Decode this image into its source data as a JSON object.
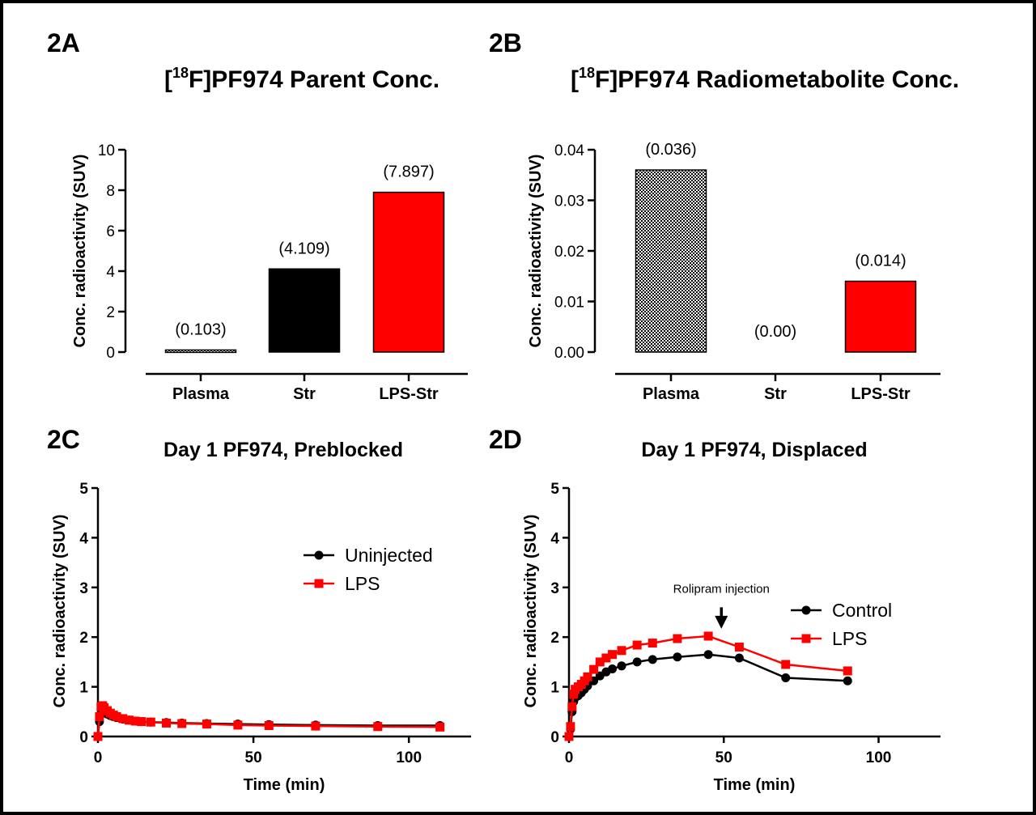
{
  "colors": {
    "black": "#000000",
    "red": "#ff0000",
    "white": "#ffffff"
  },
  "chart_data": [
    {
      "id": "2A",
      "type": "bar",
      "panel_label": "2A",
      "title_prefix": "[",
      "title_sup": "18",
      "title_rest": "F]PF974 Parent Conc.",
      "ylabel": "Conc. radioactivity (SUV)",
      "xlabel": "",
      "ylim": [
        0,
        10
      ],
      "yticks": [
        0,
        2,
        4,
        6,
        8,
        10
      ],
      "ytick_labels": [
        "0",
        "2",
        "4",
        "6",
        "8",
        "10"
      ],
      "categories": [
        "Plasma",
        "Str",
        "LPS-Str"
      ],
      "values": [
        0.103,
        4.109,
        7.897
      ],
      "value_labels": [
        "(0.103)",
        "(4.109)",
        "(7.897)"
      ],
      "fills": [
        "checker",
        "#000000",
        "#ff0000"
      ]
    },
    {
      "id": "2B",
      "type": "bar",
      "panel_label": "2B",
      "title_prefix": "[",
      "title_sup": "18",
      "title_rest": "F]PF974 Radiometabolite Conc.",
      "ylabel": "Conc. radioactivity (SUV)",
      "xlabel": "",
      "ylim": [
        0,
        0.04
      ],
      "yticks": [
        0,
        0.01,
        0.02,
        0.03,
        0.04
      ],
      "ytick_labels": [
        "0.00",
        "0.01",
        "0.02",
        "0.03",
        "0.04"
      ],
      "categories": [
        "Plasma",
        "Str",
        "LPS-Str"
      ],
      "values": [
        0.036,
        0.0,
        0.014
      ],
      "value_labels": [
        "(0.036)",
        "(0.00)",
        "(0.014)"
      ],
      "fills": [
        "checker",
        "#000000",
        "#ff0000"
      ]
    },
    {
      "id": "2C",
      "type": "line",
      "panel_label": "2C",
      "title": "Day 1 PF974, Preblocked",
      "xlabel": "Time (min)",
      "ylabel": "Conc. radioactivity (SUV)",
      "xlim": [
        0,
        120
      ],
      "ylim": [
        0,
        5
      ],
      "xticks": [
        0,
        50,
        100
      ],
      "xtick_labels": [
        "0",
        "50",
        "100"
      ],
      "yticks": [
        0,
        1,
        2,
        3,
        4,
        5
      ],
      "ytick_labels": [
        "0",
        "1",
        "2",
        "3",
        "4",
        "5"
      ],
      "legend_position": "upper-right",
      "annotation": null,
      "series": [
        {
          "name": "Uninjected",
          "color": "#000000",
          "marker": "circle",
          "x": [
            0,
            0.5,
            1,
            1.5,
            2,
            3,
            4,
            5,
            6,
            8,
            10,
            12,
            14,
            17,
            22,
            27,
            35,
            45,
            55,
            70,
            90,
            110
          ],
          "y": [
            0.0,
            0.3,
            0.45,
            0.5,
            0.48,
            0.45,
            0.42,
            0.4,
            0.38,
            0.35,
            0.33,
            0.31,
            0.3,
            0.29,
            0.28,
            0.27,
            0.26,
            0.25,
            0.24,
            0.23,
            0.22,
            0.22
          ]
        },
        {
          "name": "LPS",
          "color": "#ff0000",
          "marker": "square",
          "x": [
            0,
            0.5,
            1,
            1.5,
            2,
            3,
            4,
            5,
            6,
            8,
            10,
            12,
            14,
            17,
            22,
            27,
            35,
            45,
            55,
            70,
            90,
            110
          ],
          "y": [
            0.0,
            0.4,
            0.6,
            0.62,
            0.58,
            0.52,
            0.47,
            0.43,
            0.4,
            0.36,
            0.33,
            0.31,
            0.3,
            0.29,
            0.27,
            0.26,
            0.25,
            0.23,
            0.22,
            0.21,
            0.2,
            0.19
          ]
        }
      ]
    },
    {
      "id": "2D",
      "type": "line",
      "panel_label": "2D",
      "title": "Day 1 PF974, Displaced",
      "xlabel": "Time (min)",
      "ylabel": "Conc. radioactivity (SUV)",
      "xlim": [
        0,
        120
      ],
      "ylim": [
        0,
        5
      ],
      "xticks": [
        0,
        50,
        100
      ],
      "xtick_labels": [
        "0",
        "50",
        "100"
      ],
      "yticks": [
        0,
        1,
        2,
        3,
        4,
        5
      ],
      "ytick_labels": [
        "0",
        "1",
        "2",
        "3",
        "4",
        "5"
      ],
      "legend_position": "right",
      "annotation": {
        "text": "Rolipram injection",
        "x": 50,
        "arrow_from_y": 2.6,
        "arrow_to_y": 2.2
      },
      "series": [
        {
          "name": "Control",
          "color": "#000000",
          "marker": "circle",
          "x": [
            0,
            0.5,
            1,
            1.5,
            2,
            3,
            4,
            5,
            6,
            8,
            10,
            12,
            14,
            17,
            22,
            27,
            35,
            45,
            55,
            70,
            90
          ],
          "y": [
            0.0,
            0.15,
            0.5,
            0.7,
            0.78,
            0.82,
            0.88,
            0.95,
            1.02,
            1.12,
            1.22,
            1.3,
            1.36,
            1.42,
            1.5,
            1.55,
            1.6,
            1.65,
            1.58,
            1.18,
            1.12
          ]
        },
        {
          "name": "LPS",
          "color": "#ff0000",
          "marker": "square",
          "x": [
            0,
            0.5,
            1,
            1.5,
            2,
            3,
            4,
            5,
            6,
            8,
            10,
            12,
            14,
            17,
            22,
            27,
            35,
            45,
            55,
            70,
            90
          ],
          "y": [
            0.0,
            0.2,
            0.6,
            0.85,
            0.95,
            1.0,
            1.05,
            1.12,
            1.2,
            1.35,
            1.5,
            1.58,
            1.65,
            1.73,
            1.84,
            1.88,
            1.97,
            2.02,
            1.8,
            1.45,
            1.32
          ]
        }
      ]
    }
  ]
}
